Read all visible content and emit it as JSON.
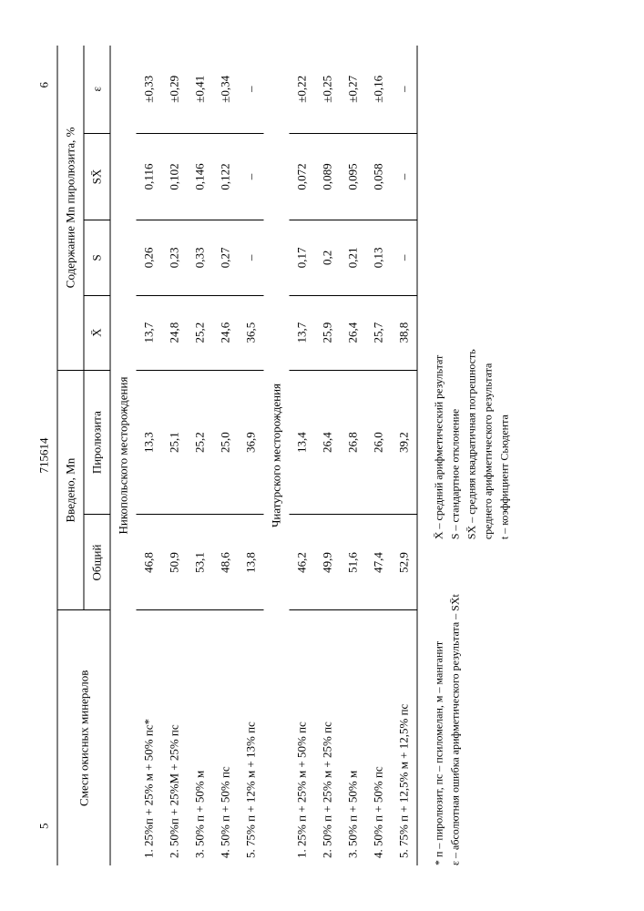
{
  "doc_number": "715614",
  "page_left": "5",
  "page_right": "6",
  "headers": {
    "mix": "Смеси окисных минералов",
    "introduced": "Введено, Mn",
    "introduced_total": "Общий",
    "introduced_pyro": "Пиролюзита",
    "content": "Содержание Mn пиролюзита, %",
    "xbar": "X̄",
    "s": "S",
    "sx": "SX̄",
    "eps": "ε"
  },
  "sections": [
    {
      "title": "Никопольского месторождения",
      "rows": [
        {
          "label": "1. 25%п + 25% м + 50% пс*",
          "total": "46,8",
          "pyro": "13,3",
          "xbar": "13,7",
          "s": "0,26",
          "sx": "0,116",
          "eps": "±0,33"
        },
        {
          "label": "2. 50%п + 25%М + 25% пс",
          "total": "50,9",
          "pyro": "25,1",
          "xbar": "24,8",
          "s": "0,23",
          "sx": "0,102",
          "eps": "±0,29"
        },
        {
          "label": "3. 50% п + 50% м",
          "total": "53,1",
          "pyro": "25,2",
          "xbar": "25,2",
          "s": "0,33",
          "sx": "0,146",
          "eps": "±0,41"
        },
        {
          "label": "4. 50% п + 50% пс",
          "total": "48,6",
          "pyro": "25,0",
          "xbar": "24,6",
          "s": "0,27",
          "sx": "0,122",
          "eps": "±0,34"
        },
        {
          "label": "5. 75% п + 12% м + 13% пс",
          "total": "13,8",
          "pyro": "36,9",
          "xbar": "36,5",
          "s": "–",
          "sx": "–",
          "eps": "–"
        }
      ]
    },
    {
      "title": "Чиатурского месторождения",
      "rows": [
        {
          "label": "1. 25% п + 25% м + 50% пс",
          "total": "46,2",
          "pyro": "13,4",
          "xbar": "13,7",
          "s": "0,17",
          "sx": "0,072",
          "eps": "±0,22"
        },
        {
          "label": "2. 50% п + 25% м + 25% пс",
          "total": "49,9",
          "pyro": "26,4",
          "xbar": "25,9",
          "s": "0,2",
          "sx": "0,089",
          "eps": "±0,25"
        },
        {
          "label": "3. 50% п + 50% м",
          "total": "51,6",
          "pyro": "26,8",
          "xbar": "26,4",
          "s": "0,21",
          "sx": "0,095",
          "eps": "±0,27"
        },
        {
          "label": "4. 50% п + 50% пс",
          "total": "47,4",
          "pyro": "26,0",
          "xbar": "25,7",
          "s": "0,13",
          "sx": "0,058",
          "eps": "±0,16"
        },
        {
          "label": "5. 75% п + 12,5% м + 12,5% пс",
          "total": "52,9",
          "pyro": "39,2",
          "xbar": "38,8",
          "s": "–",
          "sx": "–",
          "eps": "–"
        }
      ]
    }
  ],
  "footnotes": {
    "left_1": "* п – пиролюзит, пс – псиломелан, м – манганит",
    "left_2": "ε – абсолютная ошибка арифметического результата – SX̄t",
    "right_1": "X̄ – средний арифметический результат",
    "right_2": "S – стандартное отклонение",
    "right_3": "SX̄ – средняя квадратичная погрешность",
    "right_4": "    среднего арифметического результата",
    "right_5": "t – коэффициент Сьюдента"
  }
}
